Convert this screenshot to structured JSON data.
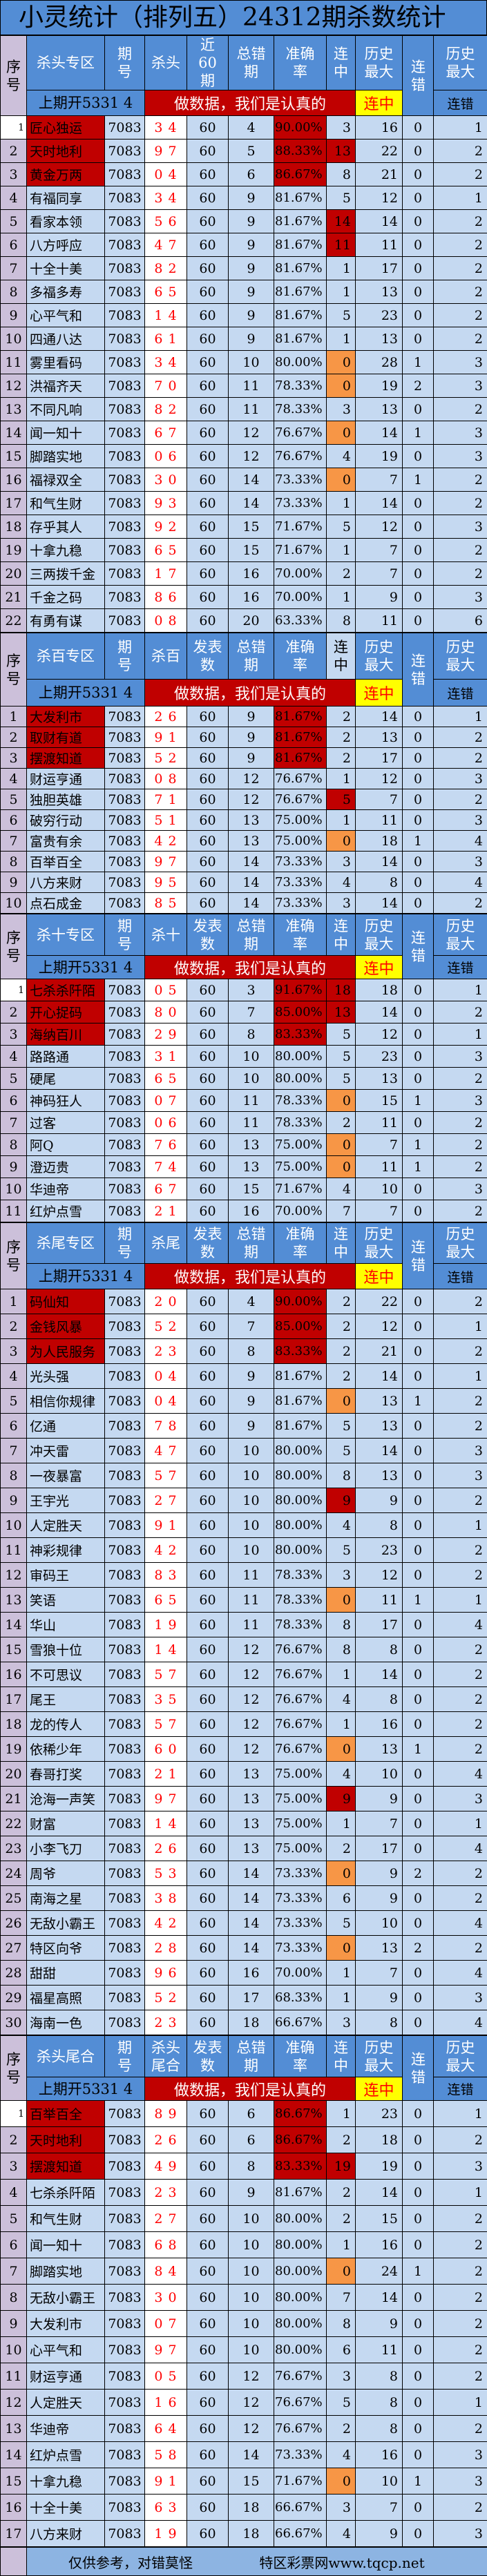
{
  "title": "小灵统计（排列五）24312期杀数统计",
  "labels": {
    "seq": "序号",
    "period": "期号",
    "errors": "总错期",
    "accuracy": "准确率",
    "streak": "连中",
    "history_max": "历史最大",
    "miss": "连错",
    "history_max_miss_top": "历史最大",
    "history_max_miss_bottom": "连错",
    "last_draw": "上期开5331 4",
    "banner": "做数据，我们是认真的",
    "banner_streak": "连中"
  },
  "colors": {
    "header": "#538DD5",
    "red": "#C00000",
    "orange": "#F79646",
    "yellow": "#FFFF00",
    "cell": "#C5D9F1",
    "seq": "#CCC0DA",
    "kill_text": "#FF0000"
  },
  "sections": [
    {
      "zone": "杀头专区",
      "kill_label": "杀头",
      "count_label": "近60期",
      "top_highlight": 3,
      "first_seq_white": true,
      "rows": [
        [
          "匠心独运",
          "7083",
          "3 4",
          "60",
          "4",
          "90.00%",
          "3",
          "16",
          "0",
          "1",
          ""
        ],
        [
          "天时地利",
          "7083",
          "9 7",
          "60",
          "5",
          "88.33%",
          "13",
          "22",
          "0",
          "2",
          "red"
        ],
        [
          "黄金万两",
          "7083",
          "0 4",
          "60",
          "6",
          "86.67%",
          "8",
          "21",
          "0",
          "2",
          ""
        ],
        [
          "有福同享",
          "7083",
          "3 4",
          "60",
          "9",
          "81.67%",
          "5",
          "12",
          "0",
          "1",
          ""
        ],
        [
          "看家本领",
          "7083",
          "5 6",
          "60",
          "9",
          "81.67%",
          "14",
          "14",
          "0",
          "2",
          "red"
        ],
        [
          "八方呼应",
          "7083",
          "4 7",
          "60",
          "9",
          "81.67%",
          "11",
          "11",
          "0",
          "2",
          "red"
        ],
        [
          "十全十美",
          "7083",
          "8 2",
          "60",
          "9",
          "81.67%",
          "1",
          "17",
          "0",
          "2",
          ""
        ],
        [
          "多福多寿",
          "7083",
          "6 5",
          "60",
          "9",
          "81.67%",
          "1",
          "13",
          "0",
          "2",
          ""
        ],
        [
          "心平气和",
          "7083",
          "1 4",
          "60",
          "9",
          "81.67%",
          "5",
          "23",
          "0",
          "2",
          ""
        ],
        [
          "四通八达",
          "7083",
          "6 1",
          "60",
          "9",
          "81.67%",
          "1",
          "13",
          "0",
          "2",
          ""
        ],
        [
          "雾里看码",
          "7083",
          "3 4",
          "60",
          "10",
          "80.00%",
          "0",
          "28",
          "1",
          "3",
          "orange"
        ],
        [
          "洪福齐天",
          "7083",
          "7 0",
          "60",
          "11",
          "78.33%",
          "0",
          "19",
          "2",
          "3",
          "orange"
        ],
        [
          "不同凡响",
          "7083",
          "8 2",
          "60",
          "11",
          "78.33%",
          "3",
          "13",
          "0",
          "2",
          ""
        ],
        [
          "闻一知十",
          "7083",
          "6 7",
          "60",
          "12",
          "76.67%",
          "0",
          "14",
          "1",
          "3",
          "orange"
        ],
        [
          "脚踏实地",
          "7083",
          "0 6",
          "60",
          "12",
          "76.67%",
          "4",
          "19",
          "0",
          "3",
          ""
        ],
        [
          "福禄双全",
          "7083",
          "3 0",
          "60",
          "14",
          "73.33%",
          "0",
          "7",
          "1",
          "2",
          "orange"
        ],
        [
          "和气生财",
          "7083",
          "9 3",
          "60",
          "14",
          "73.33%",
          "1",
          "14",
          "0",
          "2",
          ""
        ],
        [
          "存乎其人",
          "7083",
          "9 2",
          "60",
          "15",
          "71.67%",
          "5",
          "12",
          "0",
          "3",
          ""
        ],
        [
          "十拿九稳",
          "7083",
          "6 5",
          "60",
          "15",
          "71.67%",
          "1",
          "7",
          "0",
          "2",
          ""
        ],
        [
          "三两拨千金",
          "7083",
          "1 7",
          "60",
          "16",
          "70.00%",
          "2",
          "7",
          "0",
          "2",
          ""
        ],
        [
          "千金之码",
          "7083",
          "8 6",
          "60",
          "16",
          "70.00%",
          "1",
          "9",
          "0",
          "3",
          ""
        ],
        [
          "有勇有谋",
          "7083",
          "0 8",
          "60",
          "20",
          "63.33%",
          "8",
          "11",
          "0",
          "6",
          ""
        ]
      ]
    },
    {
      "zone": "杀百专区",
      "kill_label": "杀百",
      "count_label": "发表数",
      "top_highlight": 3,
      "first_seq_white": false,
      "rows": [
        [
          "大发利市",
          "7083",
          "2 6",
          "60",
          "9",
          "81.67%",
          "2",
          "14",
          "0",
          "1",
          ""
        ],
        [
          "取财有道",
          "7083",
          "9 1",
          "60",
          "9",
          "81.67%",
          "2",
          "13",
          "0",
          "2",
          ""
        ],
        [
          "摆渡知道",
          "7083",
          "5 2",
          "60",
          "9",
          "81.67%",
          "2",
          "17",
          "0",
          "2",
          ""
        ],
        [
          "财运亨通",
          "7083",
          "0 8",
          "60",
          "12",
          "76.67%",
          "1",
          "12",
          "0",
          "3",
          ""
        ],
        [
          "独胆英雄",
          "7083",
          "7 1",
          "60",
          "12",
          "76.67%",
          "5",
          "7",
          "0",
          "2",
          "red"
        ],
        [
          "破穷行动",
          "7083",
          "5 1",
          "60",
          "13",
          "75.00%",
          "1",
          "11",
          "0",
          "3",
          ""
        ],
        [
          "富贵有余",
          "7083",
          "4 2",
          "60",
          "13",
          "75.00%",
          "0",
          "18",
          "1",
          "4",
          "orange"
        ],
        [
          "百举百全",
          "7083",
          "9 7",
          "60",
          "14",
          "73.33%",
          "3",
          "14",
          "0",
          "3",
          ""
        ],
        [
          "八方来财",
          "7083",
          "9 5",
          "60",
          "14",
          "73.33%",
          "4",
          "8",
          "0",
          "4",
          ""
        ],
        [
          "点石成金",
          "7083",
          "8 5",
          "60",
          "14",
          "73.33%",
          "3",
          "14",
          "0",
          "2",
          ""
        ]
      ]
    },
    {
      "zone": "杀十专区",
      "kill_label": "杀十",
      "count_label": "发表数",
      "top_highlight": 3,
      "first_seq_white": true,
      "rows": [
        [
          "七杀杀阡陌",
          "7083",
          "0 5",
          "60",
          "3",
          "91.67%",
          "18",
          "18",
          "0",
          "1",
          "red"
        ],
        [
          "开心捉码",
          "7083",
          "8 0",
          "60",
          "7",
          "85.00%",
          "13",
          "14",
          "0",
          "2",
          "red"
        ],
        [
          "海纳百川",
          "7083",
          "2 9",
          "60",
          "8",
          "83.33%",
          "5",
          "12",
          "0",
          "1",
          ""
        ],
        [
          "路路通",
          "7083",
          "3 1",
          "60",
          "10",
          "80.00%",
          "5",
          "23",
          "0",
          "3",
          ""
        ],
        [
          "硬尾",
          "7083",
          "6 5",
          "60",
          "10",
          "80.00%",
          "5",
          "13",
          "0",
          "2",
          ""
        ],
        [
          "神码狂人",
          "7083",
          "0 7",
          "60",
          "11",
          "78.33%",
          "0",
          "15",
          "1",
          "3",
          "orange"
        ],
        [
          "过客",
          "7083",
          "0 6",
          "60",
          "11",
          "78.33%",
          "2",
          "11",
          "0",
          "2",
          ""
        ],
        [
          "阿Q",
          "7083",
          "7 6",
          "60",
          "13",
          "75.00%",
          "0",
          "7",
          "1",
          "2",
          "orange"
        ],
        [
          "澄迈贵",
          "7083",
          "7 4",
          "60",
          "13",
          "75.00%",
          "0",
          "11",
          "1",
          "2",
          "orange"
        ],
        [
          "华迪帝",
          "7083",
          "6 7",
          "60",
          "15",
          "71.67%",
          "4",
          "10",
          "0",
          "3",
          ""
        ],
        [
          "红炉点雪",
          "7083",
          "2 1",
          "60",
          "16",
          "70.00%",
          "7",
          "7",
          "0",
          "2",
          ""
        ]
      ]
    },
    {
      "zone": "杀尾专区",
      "kill_label": "杀尾",
      "count_label": "发表数",
      "top_highlight": 3,
      "first_seq_white": false,
      "rows": [
        [
          "码仙知",
          "7083",
          "2 0",
          "60",
          "4",
          "90.00%",
          "2",
          "22",
          "0",
          "2",
          ""
        ],
        [
          "金钱风暴",
          "7083",
          "5 2",
          "60",
          "7",
          "85.00%",
          "2",
          "12",
          "0",
          "1",
          ""
        ],
        [
          "为人民服务",
          "7083",
          "2 3",
          "60",
          "8",
          "83.33%",
          "2",
          "21",
          "0",
          "2",
          ""
        ],
        [
          "光头强",
          "7083",
          "0 4",
          "60",
          "9",
          "81.67%",
          "2",
          "14",
          "0",
          "1",
          ""
        ],
        [
          "相信你规律",
          "7083",
          "0 4",
          "60",
          "9",
          "81.67%",
          "0",
          "13",
          "1",
          "2",
          "orange"
        ],
        [
          "亿通",
          "7083",
          "7 8",
          "60",
          "9",
          "81.67%",
          "5",
          "13",
          "0",
          "2",
          ""
        ],
        [
          "冲天雷",
          "7083",
          "4 7",
          "60",
          "10",
          "80.00%",
          "5",
          "14",
          "0",
          "3",
          ""
        ],
        [
          "一夜暴富",
          "7083",
          "5 7",
          "60",
          "10",
          "80.00%",
          "8",
          "13",
          "0",
          "3",
          ""
        ],
        [
          "王宇光",
          "7083",
          "2 7",
          "60",
          "10",
          "80.00%",
          "9",
          "9",
          "0",
          "2",
          "red"
        ],
        [
          "人定胜天",
          "7083",
          "9 1",
          "60",
          "10",
          "80.00%",
          "4",
          "8",
          "0",
          "1",
          ""
        ],
        [
          "神彩规律",
          "7083",
          "4 2",
          "60",
          "10",
          "80.00%",
          "5",
          "23",
          "0",
          "2",
          ""
        ],
        [
          "审码王",
          "7083",
          "8 3",
          "60",
          "11",
          "78.33%",
          "3",
          "12",
          "0",
          "2",
          ""
        ],
        [
          "笑语",
          "7083",
          "6 5",
          "60",
          "11",
          "78.33%",
          "0",
          "11",
          "1",
          "1",
          "orange"
        ],
        [
          "华山",
          "7083",
          "1 9",
          "60",
          "11",
          "78.33%",
          "8",
          "17",
          "0",
          "4",
          ""
        ],
        [
          "雪狼十位",
          "7083",
          "1 4",
          "60",
          "12",
          "76.67%",
          "8",
          "8",
          "0",
          "2",
          ""
        ],
        [
          "不可思议",
          "7083",
          "5 7",
          "60",
          "12",
          "76.67%",
          "1",
          "14",
          "0",
          "2",
          ""
        ],
        [
          "尾王",
          "7083",
          "3 5",
          "60",
          "12",
          "76.67%",
          "4",
          "8",
          "0",
          "2",
          ""
        ],
        [
          "龙的传人",
          "7083",
          "5 7",
          "60",
          "12",
          "76.67%",
          "1",
          "16",
          "0",
          "2",
          ""
        ],
        [
          "依稀少年",
          "7083",
          "6 0",
          "60",
          "12",
          "76.67%",
          "0",
          "13",
          "1",
          "2",
          "orange"
        ],
        [
          "春哥打奖",
          "7083",
          "2 1",
          "60",
          "13",
          "75.00%",
          "4",
          "10",
          "0",
          "4",
          ""
        ],
        [
          "沧海一声笑",
          "7083",
          "9 7",
          "60",
          "13",
          "75.00%",
          "9",
          "9",
          "0",
          "3",
          "red"
        ],
        [
          "财富",
          "7083",
          "1 4",
          "60",
          "13",
          "75.00%",
          "1",
          "7",
          "0",
          "1",
          ""
        ],
        [
          "小李飞刀",
          "7083",
          "2 6",
          "60",
          "13",
          "75.00%",
          "2",
          "17",
          "0",
          "4",
          ""
        ],
        [
          "周爷",
          "7083",
          "5 3",
          "60",
          "14",
          "73.33%",
          "0",
          "9",
          "2",
          "2",
          "orange"
        ],
        [
          "南海之星",
          "7083",
          "3 8",
          "60",
          "14",
          "73.33%",
          "6",
          "9",
          "0",
          "2",
          ""
        ],
        [
          "无敌小霸王",
          "7083",
          "4 2",
          "60",
          "14",
          "73.33%",
          "5",
          "10",
          "0",
          "4",
          ""
        ],
        [
          "特区向爷",
          "7083",
          "2 8",
          "60",
          "14",
          "73.33%",
          "0",
          "13",
          "2",
          "2",
          "orange"
        ],
        [
          "甜甜",
          "7083",
          "9 6",
          "60",
          "16",
          "70.00%",
          "1",
          "7",
          "0",
          "4",
          ""
        ],
        [
          "福星高照",
          "7083",
          "5 2",
          "60",
          "17",
          "68.33%",
          "1",
          "9",
          "0",
          "3",
          ""
        ],
        [
          "海南一色",
          "7083",
          "2 3",
          "60",
          "18",
          "66.67%",
          "3",
          "8",
          "0",
          "4",
          ""
        ]
      ]
    },
    {
      "zone": "杀头尾合",
      "kill_label": "杀头尾合",
      "count_label": "发表数",
      "top_highlight": 3,
      "first_seq_white": true,
      "rows": [
        [
          "百举百全",
          "7083",
          "8 9",
          "60",
          "6",
          "86.67%",
          "1",
          "23",
          "0",
          "1",
          ""
        ],
        [
          "天时地利",
          "7083",
          "2 6",
          "60",
          "6",
          "86.67%",
          "2",
          "18",
          "0",
          "2",
          ""
        ],
        [
          "摆渡知道",
          "7083",
          "4 9",
          "60",
          "8",
          "83.33%",
          "19",
          "19",
          "0",
          "3",
          "red"
        ],
        [
          "七杀杀阡陌",
          "7083",
          "2 3",
          "60",
          "9",
          "81.67%",
          "2",
          "14",
          "0",
          "1",
          ""
        ],
        [
          "和气生财",
          "7083",
          "2 7",
          "60",
          "10",
          "80.00%",
          "2",
          "15",
          "0",
          "2",
          ""
        ],
        [
          "闻一知十",
          "7083",
          "6 8",
          "60",
          "10",
          "80.00%",
          "1",
          "16",
          "0",
          "2",
          ""
        ],
        [
          "脚踏实地",
          "7083",
          "8 4",
          "60",
          "10",
          "80.00%",
          "0",
          "24",
          "1",
          "2",
          "orange"
        ],
        [
          "无敌小霸王",
          "7083",
          "3 0",
          "60",
          "10",
          "80.00%",
          "7",
          "14",
          "0",
          "2",
          ""
        ],
        [
          "大发利市",
          "7083",
          "0 7",
          "60",
          "10",
          "80.00%",
          "8",
          "9",
          "0",
          "2",
          ""
        ],
        [
          "心平气和",
          "7083",
          "9 7",
          "60",
          "10",
          "80.00%",
          "6",
          "11",
          "0",
          "2",
          ""
        ],
        [
          "财运亨通",
          "7083",
          "0 5",
          "60",
          "12",
          "76.67%",
          "3",
          "8",
          "0",
          "2",
          ""
        ],
        [
          "人定胜天",
          "7083",
          "1 6",
          "60",
          "12",
          "76.67%",
          "5",
          "8",
          "0",
          "1",
          ""
        ],
        [
          "华迪帝",
          "7083",
          "6 4",
          "60",
          "12",
          "76.67%",
          "2",
          "8",
          "0",
          "2",
          ""
        ],
        [
          "红炉点雪",
          "7083",
          "5 8",
          "60",
          "14",
          "73.33%",
          "4",
          "16",
          "0",
          "3",
          ""
        ],
        [
          "十拿九稳",
          "7083",
          "9 1",
          "60",
          "15",
          "71.67%",
          "0",
          "10",
          "1",
          "3",
          "orange"
        ],
        [
          "十全十美",
          "7083",
          "6 3",
          "60",
          "18",
          "66.67%",
          "3",
          "7",
          "0",
          "2",
          ""
        ],
        [
          "八方来财",
          "7083",
          "1 9",
          "60",
          "18",
          "66.67%",
          "4",
          "9",
          "0",
          "3",
          ""
        ]
      ]
    }
  ],
  "footer": {
    "disclaimer": "仅供参考，对错莫怪",
    "site": "特区彩票网www.tqcp.net"
  }
}
